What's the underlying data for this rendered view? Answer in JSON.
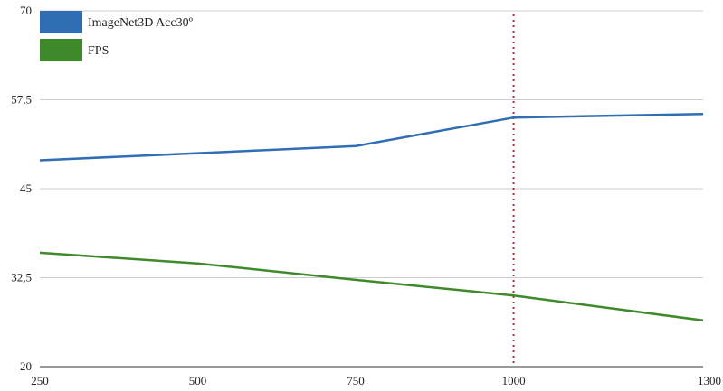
{
  "chart_data": {
    "type": "line",
    "x": [
      250,
      500,
      750,
      1000,
      1300
    ],
    "xticks": [
      "250",
      "500",
      "750",
      "1000",
      "1300"
    ],
    "yticks": [
      "20",
      "32,5",
      "45",
      "57,5",
      "70"
    ],
    "ytick_values": [
      20,
      32.5,
      45,
      57.5,
      70
    ],
    "ylim": [
      20,
      70
    ],
    "xlim": [
      250,
      1300
    ],
    "grid": "horizontal",
    "legend_position": "top-left",
    "reference_line": {
      "x": 1000,
      "color": "#b03030",
      "style": "dotted"
    },
    "series": [
      {
        "name": "ImageNet3D Acc30º",
        "color": "#2f6db5",
        "values": [
          49.0,
          50.0,
          51.0,
          55.0,
          55.5
        ]
      },
      {
        "name": "FPS",
        "color": "#3e8a2a",
        "values": [
          36.0,
          34.5,
          32.2,
          30.0,
          26.5
        ]
      }
    ]
  }
}
